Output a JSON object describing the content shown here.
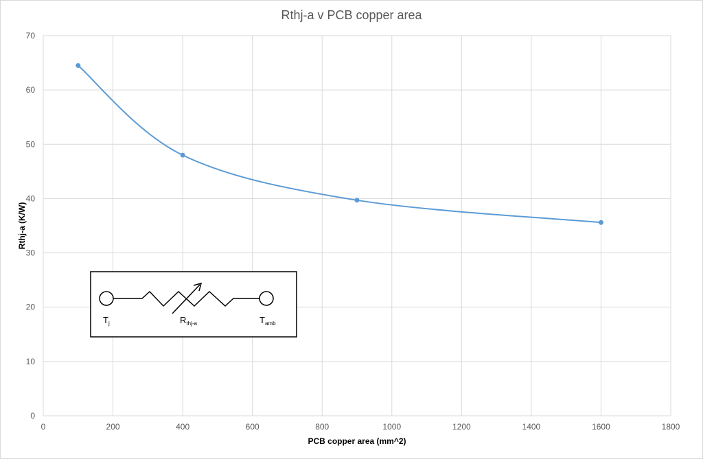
{
  "chart_data": {
    "type": "line",
    "title": "Rthj-a v PCB copper area",
    "xlabel": "PCB copper area (mm^2)",
    "ylabel": "Rthj-a (K/W)",
    "xlim": [
      0,
      1800
    ],
    "ylim": [
      0,
      70
    ],
    "xticks": [
      0,
      200,
      400,
      600,
      800,
      1000,
      1200,
      1400,
      1600,
      1800
    ],
    "yticks": [
      0,
      10,
      20,
      30,
      40,
      50,
      60,
      70
    ],
    "grid": true,
    "smoothed": true,
    "series_color": "#5b9bd5",
    "x": [
      100,
      400,
      900,
      1600
    ],
    "y": [
      64.5,
      48.0,
      39.7,
      35.6
    ],
    "inset": {
      "labels": [
        {
          "main": "T",
          "sub": "j"
        },
        {
          "main": "R",
          "sub": "thj-a"
        },
        {
          "main": "T",
          "sub": "amb"
        }
      ]
    }
  }
}
